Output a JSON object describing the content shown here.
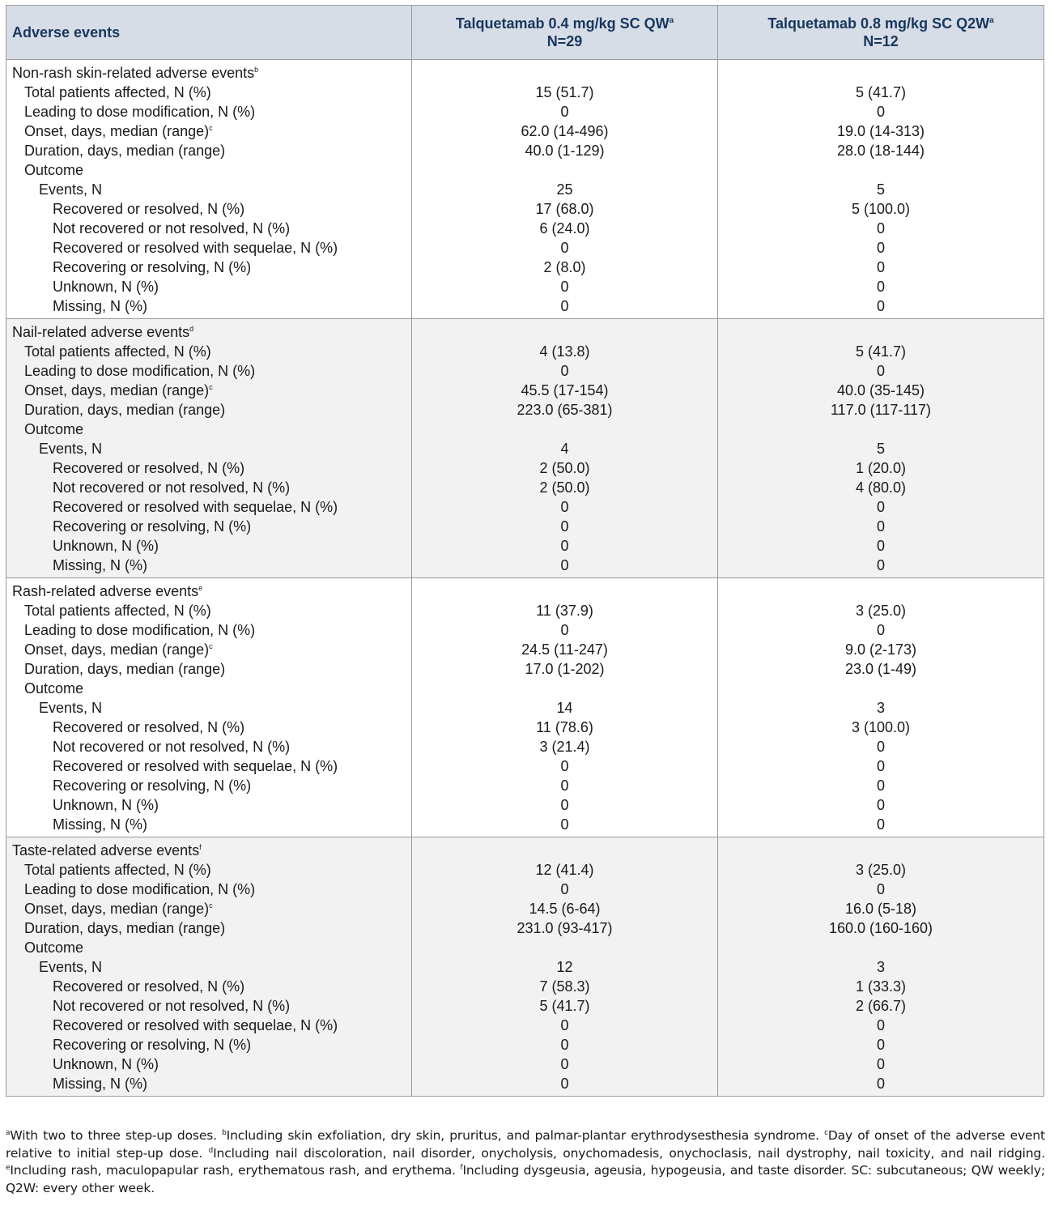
{
  "table": {
    "headers": {
      "col1": "Adverse events",
      "col2_line1": "Talquetamab 0.4 mg/kg SC QW",
      "col2_sup": "a",
      "col2_line2": "N=29",
      "col3_line1": "Talquetamab 0.8 mg/kg SC Q2W",
      "col3_sup": "a",
      "col3_line2": "N=12"
    },
    "sections": [
      {
        "title": "Non-rash skin-related adverse events",
        "title_sup": "b",
        "rows": [
          {
            "label": "Total patients affected, N (%)",
            "sup": "",
            "indent": 1,
            "qw": "15 (51.7)",
            "q2w": "5 (41.7)"
          },
          {
            "label": "Leading to dose modification, N (%)",
            "sup": "",
            "indent": 1,
            "qw": "0",
            "q2w": "0"
          },
          {
            "label": "Onset, days, median (range)",
            "sup": "c",
            "indent": 1,
            "qw": "62.0 (14-496)",
            "q2w": "19.0 (14-313)"
          },
          {
            "label": "Duration, days, median (range)",
            "sup": "",
            "indent": 1,
            "qw": "40.0 (1-129)",
            "q2w": "28.0 (18-144)"
          },
          {
            "label": "Outcome",
            "sup": "",
            "indent": 1,
            "qw": "",
            "q2w": ""
          },
          {
            "label": "Events, N",
            "sup": "",
            "indent": 2,
            "qw": "25",
            "q2w": "5"
          },
          {
            "label": "Recovered or resolved, N (%)",
            "sup": "",
            "indent": 3,
            "qw": "17 (68.0)",
            "q2w": "5 (100.0)"
          },
          {
            "label": "Not recovered or not resolved, N (%)",
            "sup": "",
            "indent": 3,
            "qw": "6 (24.0)",
            "q2w": "0"
          },
          {
            "label": "Recovered or resolved with sequelae, N (%)",
            "sup": "",
            "indent": 3,
            "qw": "0",
            "q2w": "0"
          },
          {
            "label": "Recovering or resolving, N (%)",
            "sup": "",
            "indent": 3,
            "qw": "2 (8.0)",
            "q2w": "0"
          },
          {
            "label": "Unknown, N (%)",
            "sup": "",
            "indent": 3,
            "qw": "0",
            "q2w": "0"
          },
          {
            "label": "Missing, N (%)",
            "sup": "",
            "indent": 3,
            "qw": "0",
            "q2w": "0"
          }
        ]
      },
      {
        "title": "Nail-related adverse events",
        "title_sup": "d",
        "rows": [
          {
            "label": "Total patients affected, N (%)",
            "sup": "",
            "indent": 1,
            "qw": "4 (13.8)",
            "q2w": "5 (41.7)"
          },
          {
            "label": "Leading to dose modification, N (%)",
            "sup": "",
            "indent": 1,
            "qw": "0",
            "q2w": "0"
          },
          {
            "label": "Onset, days, median (range)",
            "sup": "c",
            "indent": 1,
            "qw": "45.5 (17-154)",
            "q2w": "40.0 (35-145)"
          },
          {
            "label": "Duration, days, median (range)",
            "sup": "",
            "indent": 1,
            "qw": "223.0 (65-381)",
            "q2w": "117.0 (117-117)"
          },
          {
            "label": "Outcome",
            "sup": "",
            "indent": 1,
            "qw": "",
            "q2w": ""
          },
          {
            "label": "Events, N",
            "sup": "",
            "indent": 2,
            "qw": "4",
            "q2w": "5"
          },
          {
            "label": "Recovered or resolved, N (%)",
            "sup": "",
            "indent": 3,
            "qw": "2 (50.0)",
            "q2w": "1 (20.0)"
          },
          {
            "label": "Not recovered or not resolved, N (%)",
            "sup": "",
            "indent": 3,
            "qw": "2 (50.0)",
            "q2w": "4 (80.0)"
          },
          {
            "label": "Recovered or resolved with sequelae, N (%)",
            "sup": "",
            "indent": 3,
            "qw": "0",
            "q2w": "0"
          },
          {
            "label": "Recovering or resolving, N (%)",
            "sup": "",
            "indent": 3,
            "qw": "0",
            "q2w": "0"
          },
          {
            "label": "Unknown, N (%)",
            "sup": "",
            "indent": 3,
            "qw": "0",
            "q2w": "0"
          },
          {
            "label": "Missing, N (%)",
            "sup": "",
            "indent": 3,
            "qw": "0",
            "q2w": "0"
          }
        ]
      },
      {
        "title": "Rash-related adverse events",
        "title_sup": "e",
        "rows": [
          {
            "label": "Total patients affected, N (%)",
            "sup": "",
            "indent": 1,
            "qw": "11 (37.9)",
            "q2w": "3 (25.0)"
          },
          {
            "label": "Leading to dose modification, N (%)",
            "sup": "",
            "indent": 1,
            "qw": "0",
            "q2w": "0"
          },
          {
            "label": "Onset, days, median (range)",
            "sup": "c",
            "indent": 1,
            "qw": "24.5 (11-247)",
            "q2w": "9.0 (2-173)"
          },
          {
            "label": "Duration, days, median (range)",
            "sup": "",
            "indent": 1,
            "qw": "17.0 (1-202)",
            "q2w": "23.0 (1-49)"
          },
          {
            "label": "Outcome",
            "sup": "",
            "indent": 1,
            "qw": "",
            "q2w": ""
          },
          {
            "label": "Events, N",
            "sup": "",
            "indent": 2,
            "qw": "14",
            "q2w": "3"
          },
          {
            "label": "Recovered or resolved, N (%)",
            "sup": "",
            "indent": 3,
            "qw": "11 (78.6)",
            "q2w": "3 (100.0)"
          },
          {
            "label": "Not recovered or not resolved, N (%)",
            "sup": "",
            "indent": 3,
            "qw": "3 (21.4)",
            "q2w": "0"
          },
          {
            "label": "Recovered or resolved with sequelae, N (%)",
            "sup": "",
            "indent": 3,
            "qw": "0",
            "q2w": "0"
          },
          {
            "label": "Recovering or resolving, N (%)",
            "sup": "",
            "indent": 3,
            "qw": "0",
            "q2w": "0"
          },
          {
            "label": "Unknown, N (%)",
            "sup": "",
            "indent": 3,
            "qw": "0",
            "q2w": "0"
          },
          {
            "label": "Missing, N (%)",
            "sup": "",
            "indent": 3,
            "qw": "0",
            "q2w": "0"
          }
        ]
      },
      {
        "title": "Taste-related adverse events",
        "title_sup": "f",
        "rows": [
          {
            "label": "Total patients affected, N (%)",
            "sup": "",
            "indent": 1,
            "qw": "12 (41.4)",
            "q2w": "3 (25.0)"
          },
          {
            "label": "Leading to dose modification, N (%)",
            "sup": "",
            "indent": 1,
            "qw": "0",
            "q2w": "0"
          },
          {
            "label": "Onset, days, median (range)",
            "sup": "c",
            "indent": 1,
            "qw": "14.5 (6-64)",
            "q2w": "16.0 (5-18)"
          },
          {
            "label": "Duration, days, median (range)",
            "sup": "",
            "indent": 1,
            "qw": "231.0 (93-417)",
            "q2w": "160.0 (160-160)"
          },
          {
            "label": "Outcome",
            "sup": "",
            "indent": 1,
            "qw": "",
            "q2w": ""
          },
          {
            "label": "Events, N",
            "sup": "",
            "indent": 2,
            "qw": "12",
            "q2w": "3"
          },
          {
            "label": "Recovered or resolved, N (%)",
            "sup": "",
            "indent": 3,
            "qw": "7 (58.3)",
            "q2w": "1 (33.3)"
          },
          {
            "label": "Not recovered or not resolved, N (%)",
            "sup": "",
            "indent": 3,
            "qw": "5 (41.7)",
            "q2w": "2 (66.7)"
          },
          {
            "label": "Recovered or resolved with sequelae, N (%)",
            "sup": "",
            "indent": 3,
            "qw": "0",
            "q2w": "0"
          },
          {
            "label": "Recovering or resolving, N (%)",
            "sup": "",
            "indent": 3,
            "qw": "0",
            "q2w": "0"
          },
          {
            "label": "Unknown, N (%)",
            "sup": "",
            "indent": 3,
            "qw": "0",
            "q2w": "0"
          },
          {
            "label": "Missing, N (%)",
            "sup": "",
            "indent": 3,
            "qw": "0",
            "q2w": "0"
          }
        ]
      }
    ]
  },
  "footnotes": [
    {
      "sup": "a",
      "text": "With two to three step-up doses. "
    },
    {
      "sup": "b",
      "text": "Including skin exfoliation, dry skin, pruritus, and palmar-plantar erythrodysesthesia syndrome. "
    },
    {
      "sup": "c",
      "text": "Day of onset of the adverse event relative to initial step-up dose. "
    },
    {
      "sup": "d",
      "text": "Including nail discoloration, nail disorder, onycholysis, onychomadesis, onychoclasis, nail dystrophy, nail toxicity, and nail ridging. "
    },
    {
      "sup": "e",
      "text": "Including rash, maculopapular rash, erythematous rash, and erythema. "
    },
    {
      "sup": "f",
      "text": "Including dysgeusia, ageusia, hypogeusia, and taste disorder. SC: subcutaneous; QW weekly; Q2W: every other week."
    }
  ],
  "colors": {
    "header_bg": "#d7dde6",
    "header_text": "#17375e",
    "shaded_section_bg": "#f2f2f2",
    "border": "#9a9a9a"
  }
}
